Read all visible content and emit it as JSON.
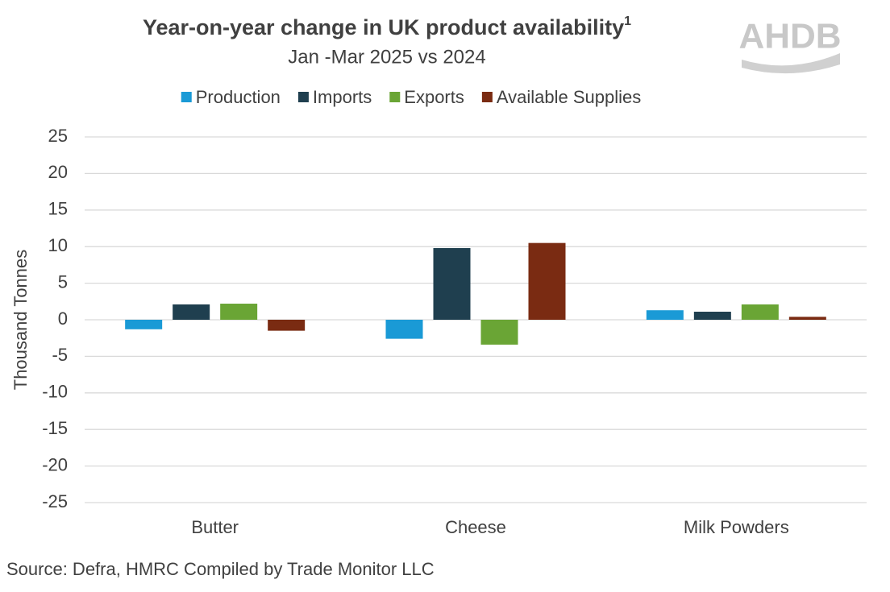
{
  "chart_data": {
    "type": "bar",
    "title": "Year-on-year change in UK product availability",
    "title_superscript": "1",
    "subtitle": "Jan -Mar 2025 vs 2024",
    "logo": "AHDB",
    "y_label": "Thousand Tonnes",
    "source": "Source: Defra, HMRC Compiled by Trade Monitor LLC",
    "categories": [
      "Butter",
      "Cheese",
      "Milk Powders"
    ],
    "series": [
      {
        "name": "Production",
        "color": "#1a9ad6",
        "values": [
          -1.3,
          -2.6,
          1.3
        ]
      },
      {
        "name": "Imports",
        "color": "#1f3f4f",
        "values": [
          2.1,
          9.8,
          1.1
        ]
      },
      {
        "name": "Exports",
        "color": "#6aa535",
        "values": [
          2.2,
          -3.4,
          2.1
        ]
      },
      {
        "name": "Available Supplies",
        "color": "#7a2b12",
        "values": [
          -1.5,
          10.5,
          0.4
        ]
      }
    ],
    "ylim": [
      -25,
      25
    ],
    "yticks": [
      -25,
      -20,
      -15,
      -10,
      -5,
      0,
      5,
      10,
      15,
      20,
      25
    ],
    "grid": true
  }
}
